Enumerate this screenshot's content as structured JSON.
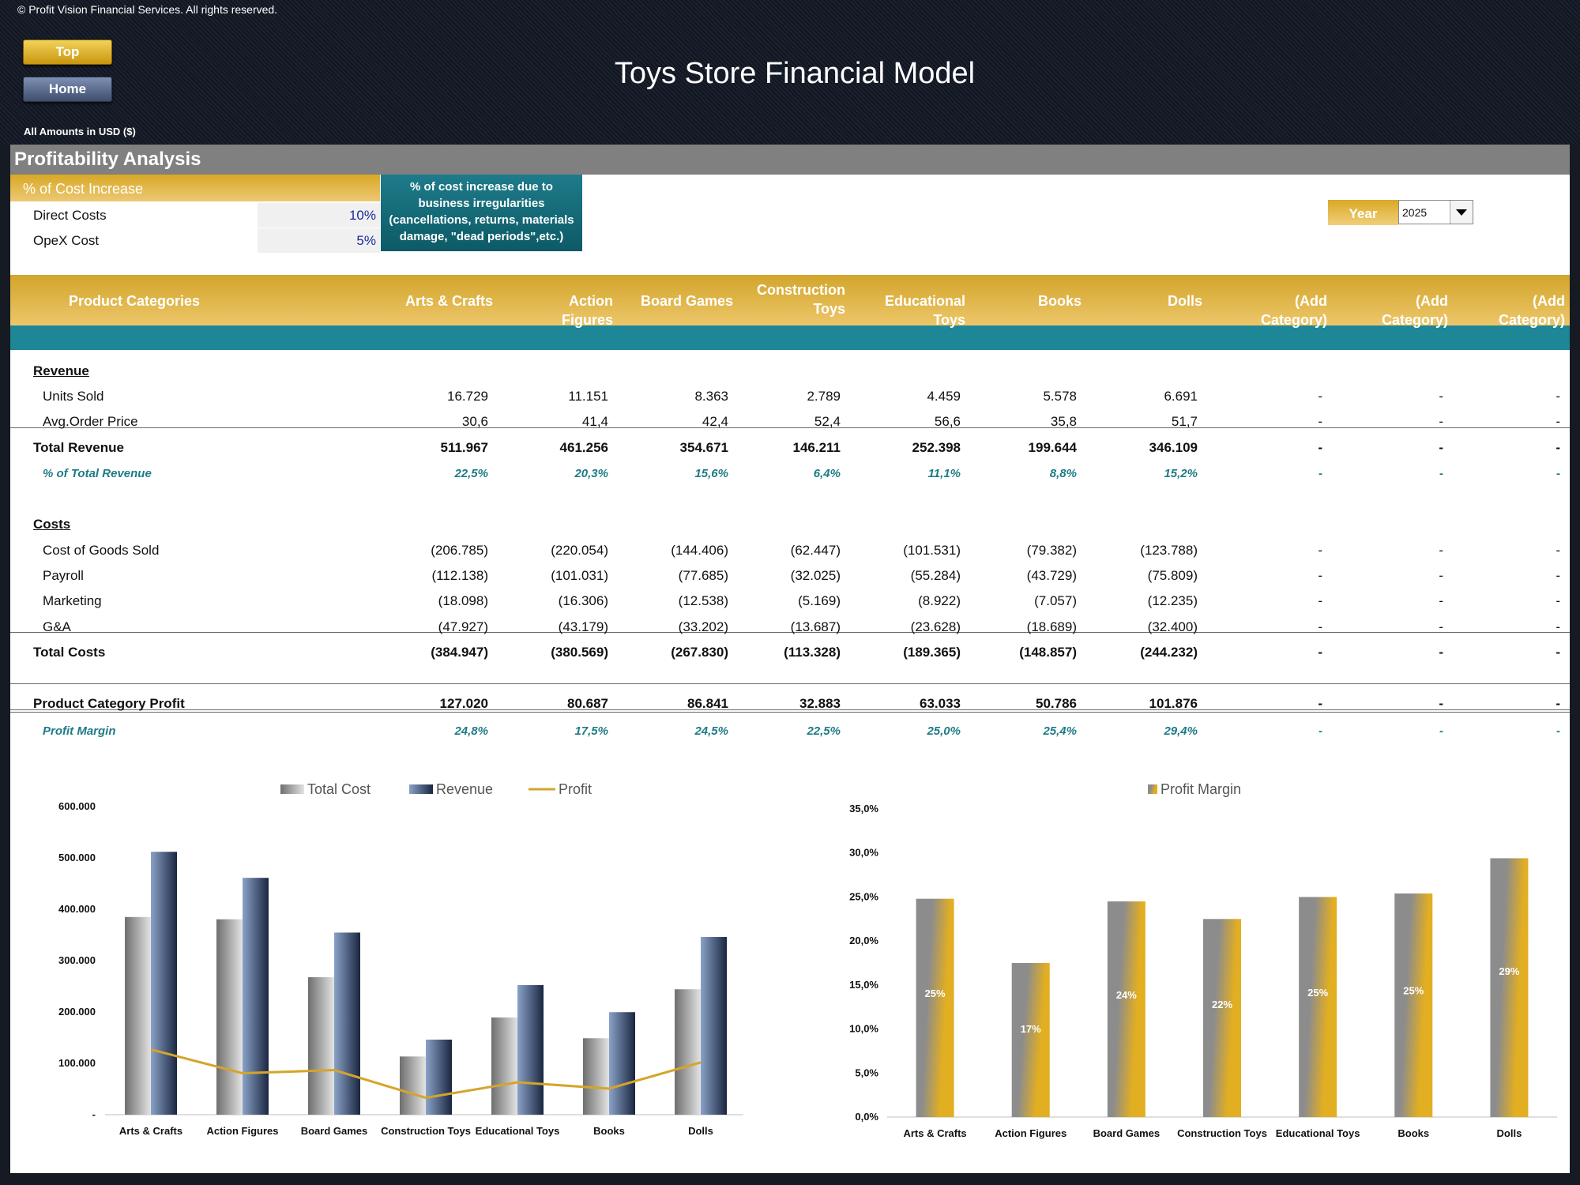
{
  "header": {
    "copyright": "© Profit Vision Financial Services. All rights reserved.",
    "top_button": "Top",
    "home_button": "Home",
    "title": "Toys Store Financial Model",
    "amounts_note": "All Amounts in  USD ($)"
  },
  "section": {
    "title": "Profitability Analysis"
  },
  "cost_increase": {
    "header": "% of Cost Increase",
    "rows": [
      {
        "label": "Direct Costs",
        "value": "10%"
      },
      {
        "label": "OpeX Cost",
        "value": "5%"
      }
    ],
    "note": [
      "% of cost increase due to",
      "business irregularities",
      "(cancellations, returns, materials",
      "damage, \"dead periods\",etc.)"
    ]
  },
  "year": {
    "label": "Year",
    "value": "2025"
  },
  "table": {
    "header_label": "Product Categories",
    "columns": [
      "Arts & Crafts",
      "Action Figures",
      "Board Games",
      "Construction Toys",
      "Educational Toys",
      "Books",
      "Dolls",
      "(Add Category)",
      "(Add Category)",
      "(Add Category)"
    ],
    "rows": [
      {
        "label": "Revenue",
        "style": "section",
        "values": []
      },
      {
        "label": "Units Sold",
        "style": "item",
        "values": [
          "16.729",
          "11.151",
          "8.363",
          "2.789",
          "4.459",
          "5.578",
          "6.691",
          "-",
          "-",
          "-"
        ]
      },
      {
        "label": "Avg.Order Price",
        "style": "item",
        "values": [
          "30,6",
          "41,4",
          "42,4",
          "52,4",
          "56,6",
          "35,8",
          "51,7",
          "-",
          "-",
          "-"
        ]
      },
      {
        "label": "Total Revenue",
        "style": "total",
        "values": [
          "511.967",
          "461.256",
          "354.671",
          "146.211",
          "252.398",
          "199.644",
          "346.109",
          "-",
          "-",
          "-"
        ]
      },
      {
        "label": "% of Total Revenue",
        "style": "pct",
        "values": [
          "22,5%",
          "20,3%",
          "15,6%",
          "6,4%",
          "11,1%",
          "8,8%",
          "15,2%",
          "-",
          "-",
          "-"
        ]
      },
      {
        "label": "Costs",
        "style": "section",
        "values": []
      },
      {
        "label": "Cost of Goods Sold",
        "style": "item",
        "values": [
          "(206.785)",
          "(220.054)",
          "(144.406)",
          "(62.447)",
          "(101.531)",
          "(79.382)",
          "(123.788)",
          "-",
          "-",
          "-"
        ]
      },
      {
        "label": "Payroll",
        "style": "item",
        "values": [
          "(112.138)",
          "(101.031)",
          "(77.685)",
          "(32.025)",
          "(55.284)",
          "(43.729)",
          "(75.809)",
          "-",
          "-",
          "-"
        ]
      },
      {
        "label": "Marketing",
        "style": "item",
        "values": [
          "(18.098)",
          "(16.306)",
          "(12.538)",
          "(5.169)",
          "(8.922)",
          "(7.057)",
          "(12.235)",
          "-",
          "-",
          "-"
        ]
      },
      {
        "label": "G&A",
        "style": "item",
        "values": [
          "(47.927)",
          "(43.179)",
          "(33.202)",
          "(13.687)",
          "(23.628)",
          "(18.689)",
          "(32.400)",
          "-",
          "-",
          "-"
        ]
      },
      {
        "label": "Total Costs",
        "style": "total",
        "values": [
          "(384.947)",
          "(380.569)",
          "(267.830)",
          "(113.328)",
          "(189.365)",
          "(148.857)",
          "(244.232)",
          "-",
          "-",
          "-"
        ]
      },
      {
        "label": "Product Category Profit",
        "style": "total",
        "values": [
          "127.020",
          "80.687",
          "86.841",
          "32.883",
          "63.033",
          "50.786",
          "101.876",
          "-",
          "-",
          "-"
        ]
      },
      {
        "label": "Profit Margin",
        "style": "pct",
        "values": [
          "24,8%",
          "17,5%",
          "24,5%",
          "22,5%",
          "25,0%",
          "25,4%",
          "29,4%",
          "-",
          "-",
          "-"
        ]
      }
    ]
  },
  "chart_data": [
    {
      "type": "bar",
      "categories": [
        "Arts & Crafts",
        "Action Figures",
        "Board Games",
        "Construction Toys",
        "Educational Toys",
        "Books",
        "Dolls"
      ],
      "series": [
        {
          "name": "Total Cost",
          "kind": "bar",
          "color": "#9c9c9c",
          "values": [
            384947,
            380569,
            267830,
            113328,
            189365,
            148857,
            244232
          ]
        },
        {
          "name": "Revenue",
          "kind": "bar",
          "color": "#2b3a57",
          "values": [
            511967,
            461256,
            354671,
            146211,
            252398,
            199644,
            346109
          ]
        },
        {
          "name": "Profit",
          "kind": "line",
          "color": "#d4a52a",
          "values": [
            127020,
            80687,
            86841,
            32883,
            63033,
            50786,
            101876
          ]
        }
      ],
      "ylim": [
        0,
        600000
      ],
      "yticks": [
        "-",
        "100.000",
        "200.000",
        "300.000",
        "400.000",
        "500.000",
        "600.000"
      ],
      "legend": "top",
      "grid": false
    },
    {
      "type": "bar",
      "categories": [
        "Arts & Crafts",
        "Action Figures",
        "Board Games",
        "Construction Toys",
        "Educational Toys",
        "Books",
        "Dolls"
      ],
      "series": [
        {
          "name": "Profit Margin",
          "color": "#d4a52a",
          "values": [
            24.8,
            17.5,
            24.5,
            22.5,
            25.0,
            25.4,
            29.4
          ],
          "data_labels": [
            "25%",
            "17%",
            "24%",
            "22%",
            "25%",
            "25%",
            "29%"
          ]
        }
      ],
      "ylim": [
        0,
        35
      ],
      "yticks": [
        "0,0%",
        "5,0%",
        "10,0%",
        "15,0%",
        "20,0%",
        "25,0%",
        "30,0%",
        "35,0%"
      ],
      "legend": "top",
      "grid": false
    }
  ]
}
